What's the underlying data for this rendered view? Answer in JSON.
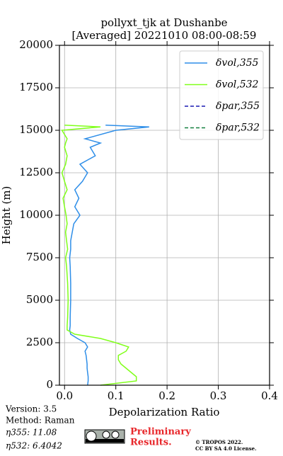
{
  "chart_data": {
    "type": "line",
    "title": "pollyxt_tjk at Dushanbe",
    "subtitle": "[Averaged] 20221010 08:00-08:59",
    "x_label": "Depolarization Ratio",
    "y_label": "Height (m)",
    "xlim": [
      -0.01,
      0.4
    ],
    "xticks": [
      {
        "value": 0,
        "label": "0.0"
      },
      0.1,
      0.2,
      0.3,
      0.4
    ],
    "ylim": [
      0,
      20000
    ],
    "yticks": [
      0,
      2500,
      5000,
      7500,
      10000,
      12500,
      15000,
      17500,
      20000
    ],
    "grid": true,
    "legend": "upper right",
    "heights": [
      0,
      250,
      500,
      750,
      1000,
      1250,
      1500,
      1750,
      2000,
      2250,
      2500,
      2750,
      3000,
      3250,
      3500,
      4000,
      5000,
      6000,
      7000,
      7500,
      8000,
      8500,
      9000,
      9500,
      10000,
      10500,
      11000,
      11500,
      12000,
      12500,
      13000,
      13500,
      14000,
      14250,
      14500,
      15000,
      15200,
      15300
    ],
    "series": [
      {
        "name": "δvol,355",
        "color": "#2e8ee8",
        "dash": "solid",
        "values": [
          0.045,
          0.046,
          0.046,
          0.045,
          0.044,
          0.044,
          0.043,
          0.042,
          0.04,
          0.045,
          0.04,
          0.025,
          0.012,
          0.01,
          0.011,
          0.011,
          0.012,
          0.012,
          0.011,
          0.01,
          0.012,
          0.012,
          0.015,
          0.018,
          0.03,
          0.02,
          0.028,
          0.02,
          0.035,
          0.045,
          0.03,
          0.06,
          0.05,
          0.07,
          0.04,
          0.1,
          0.165,
          0.08
        ]
      },
      {
        "name": "δvol,532",
        "color": "#80ff1a",
        "dash": "solid",
        "values": [
          0.07,
          0.14,
          0.14,
          0.13,
          0.12,
          0.11,
          0.105,
          0.105,
          0.12,
          0.125,
          0.1,
          0.07,
          0.02,
          0.005,
          0.005,
          0.006,
          0.007,
          0.006,
          0.004,
          0.002,
          0.006,
          0.004,
          0.002,
          0.005,
          0.003,
          0.0,
          -0.003,
          0.005,
          0.0,
          -0.005,
          0.002,
          0.005,
          0.0,
          0.002,
          0.005,
          -0.005,
          0.07,
          0.0
        ]
      },
      {
        "name": "δpar,355",
        "color": "#1a1ab3",
        "dash": "dashed",
        "values": [
          null,
          null,
          null,
          null,
          null,
          null,
          null,
          null,
          null,
          null,
          null,
          null,
          null,
          null,
          null,
          null,
          null,
          null,
          null,
          null,
          null,
          null,
          null,
          null,
          null,
          null,
          null,
          null,
          null,
          null,
          null,
          null,
          null,
          null,
          null,
          null,
          null,
          null
        ]
      },
      {
        "name": "δpar,532",
        "color": "#148040",
        "dash": "dashed",
        "values": [
          null,
          null,
          null,
          null,
          null,
          null,
          null,
          null,
          null,
          null,
          null,
          null,
          null,
          null,
          null,
          null,
          null,
          null,
          null,
          null,
          null,
          null,
          null,
          null,
          null,
          null,
          null,
          null,
          null,
          null,
          null,
          null,
          null,
          null,
          null,
          null,
          null,
          null
        ]
      }
    ]
  },
  "footer": {
    "version": "Version: 3.5",
    "method": "Method: Raman",
    "eta355": "η355:  11.08",
    "eta532": "η532: 6.4042",
    "preliminary": [
      "Preliminary",
      "Results."
    ],
    "copyright": [
      "© TROPOS 2022.",
      "CC BY SA 4.0 License."
    ]
  }
}
